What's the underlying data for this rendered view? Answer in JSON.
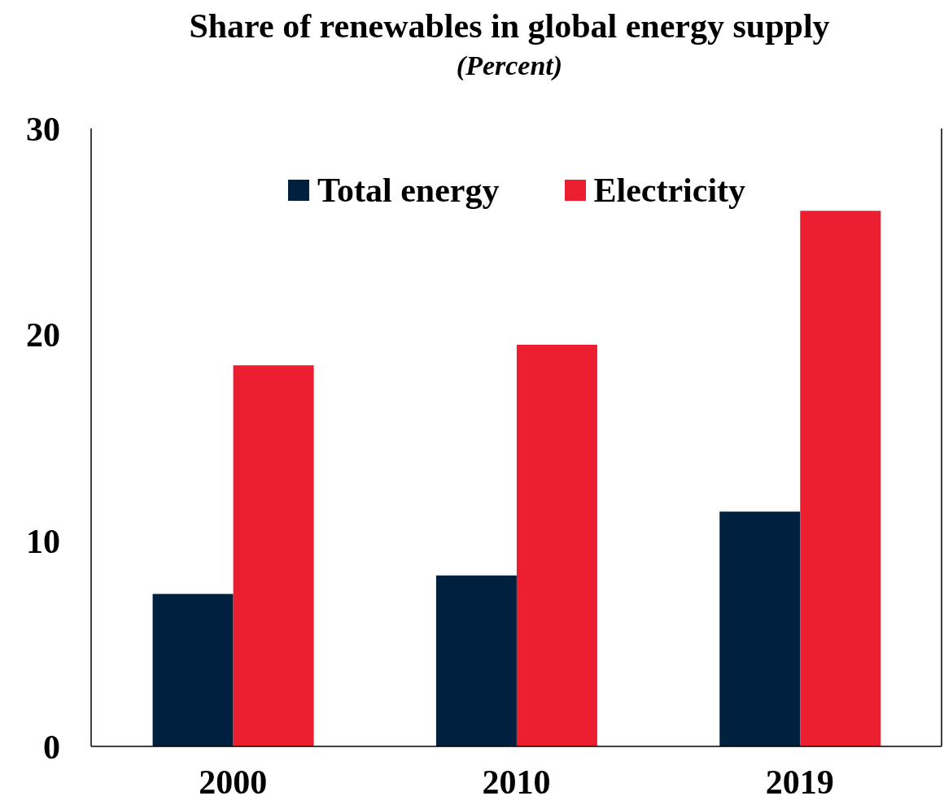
{
  "chart_data": {
    "type": "bar",
    "title": "Share of renewables in global energy supply",
    "subtitle": "(Percent)",
    "categories": [
      "2000",
      "2010",
      "2019"
    ],
    "series": [
      {
        "name": "Total energy",
        "color": "#00203f",
        "values": [
          7.4,
          8.3,
          11.4
        ]
      },
      {
        "name": "Electricity",
        "color": "#ec1f30",
        "values": [
          18.5,
          19.5,
          26.0
        ]
      }
    ],
    "ylim": [
      0,
      30
    ],
    "yticks": [
      0,
      10,
      20,
      30
    ],
    "grid": false,
    "legend": "top"
  }
}
